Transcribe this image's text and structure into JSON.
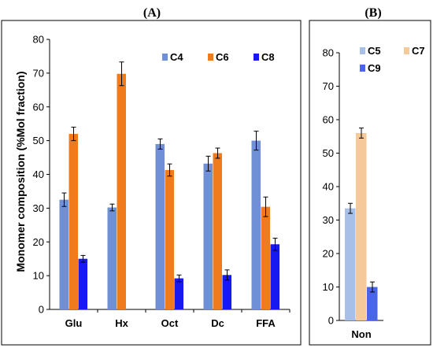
{
  "chart_data": [
    {
      "type": "bar",
      "panel_label": "(A)",
      "ylabel": "Monomer composition (%Mol fraction)",
      "ylim": [
        0,
        80
      ],
      "yticks": [
        "0",
        "10",
        "20",
        "30",
        "40",
        "50",
        "60",
        "70",
        "80"
      ],
      "categories": [
        "Glu",
        "Hx",
        "Oct",
        "Dc",
        "FFA"
      ],
      "legend_position": "top-right",
      "series": [
        {
          "name": "C4",
          "color": "#6f8fd6",
          "values": [
            32.5,
            30.2,
            49.0,
            43.2,
            50.0
          ],
          "errors": [
            2.0,
            1.0,
            1.5,
            2.2,
            2.8
          ]
        },
        {
          "name": "C6",
          "color": "#f07b1c",
          "values": [
            52.0,
            69.8,
            41.3,
            46.3,
            30.4
          ],
          "errors": [
            2.0,
            3.5,
            1.8,
            1.5,
            2.9
          ]
        },
        {
          "name": "C8",
          "color": "#1818f0",
          "values": [
            15.0,
            null,
            9.2,
            10.2,
            19.3
          ],
          "errors": [
            1.0,
            null,
            1.0,
            1.5,
            1.8
          ]
        }
      ]
    },
    {
      "type": "bar",
      "panel_label": "(B)",
      "ylim": [
        0,
        80
      ],
      "yticks": [
        "0",
        "10",
        "20",
        "30",
        "40",
        "50",
        "60",
        "70",
        "80"
      ],
      "categories": [
        "Non"
      ],
      "legend_position": "top",
      "series": [
        {
          "name": "C5",
          "color": "#a8bfe8",
          "values": [
            33.5
          ],
          "errors": [
            1.5
          ]
        },
        {
          "name": "C7",
          "color": "#f5c99a",
          "values": [
            56.0
          ],
          "errors": [
            1.5
          ]
        },
        {
          "name": "C9",
          "color": "#4a66e8",
          "values": [
            10.0
          ],
          "errors": [
            1.5
          ]
        }
      ]
    }
  ]
}
